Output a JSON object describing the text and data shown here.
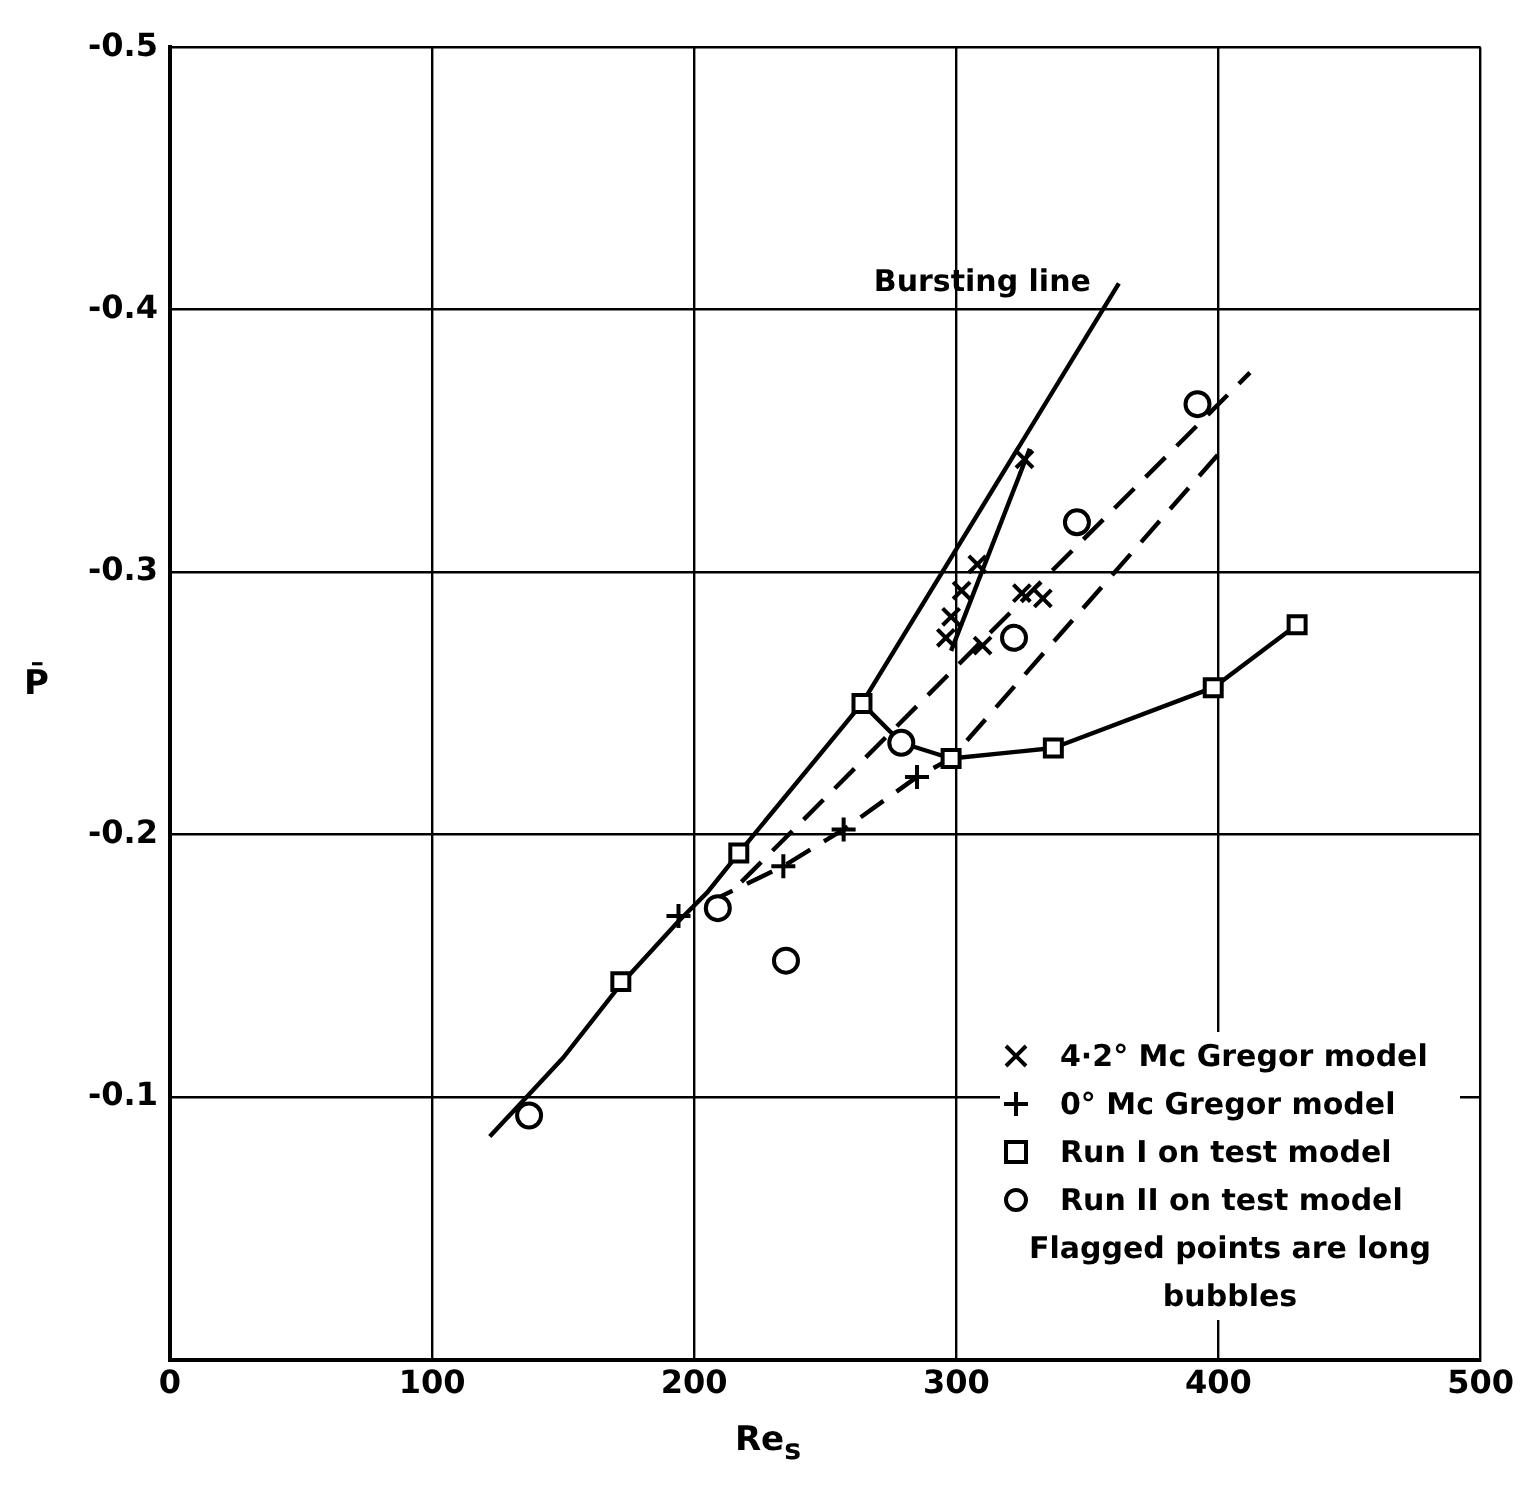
{
  "chart_data": {
    "type": "scatter",
    "xlabel": "Re$_{s}$",
    "ylabel": "P̄",
    "xlim": [
      0,
      500
    ],
    "xticks": [
      0,
      100,
      200,
      300,
      400,
      500
    ],
    "ylim": [
      0,
      -0.5
    ],
    "yticks": [
      {
        "value": 0,
        "label": null
      },
      -0.1,
      -0.2,
      -0.3,
      -0.4,
      -0.5
    ],
    "grid": true,
    "legend": "bottom right",
    "series": [
      {
        "name": "4·2° Mc Gregor model",
        "type": "scatter",
        "marker": "x",
        "color": "#000000",
        "x": [
          296,
          298,
          302,
          308,
          310,
          325,
          333,
          326
        ],
        "values": [
          -0.275,
          -0.283,
          -0.293,
          -0.303,
          -0.272,
          -0.292,
          -0.29,
          -0.343
        ]
      },
      {
        "name": "0° Mc Gregor model",
        "type": "scatter",
        "marker": "cross",
        "color": "#000000",
        "x": [
          194,
          234,
          257,
          285
        ],
        "values": [
          -0.169,
          -0.188,
          -0.202,
          -0.222
        ]
      },
      {
        "name": "Run I on test model",
        "type": "scatter",
        "marker": "square",
        "color": "#000000",
        "x": [
          172,
          217,
          264,
          298,
          337,
          398,
          430
        ],
        "values": [
          -0.144,
          -0.193,
          -0.25,
          -0.229,
          -0.233,
          -0.256,
          -0.28
        ]
      },
      {
        "name": "Run II on test model",
        "type": "scatter",
        "marker": "circle",
        "color": "#000000",
        "x": [
          137,
          209,
          235,
          279,
          322,
          346,
          392
        ],
        "values": [
          -0.093,
          -0.172,
          -0.152,
          -0.235,
          -0.275,
          -0.319,
          -0.364
        ]
      },
      {
        "type": "line",
        "line_style": "solid",
        "color": "#000000",
        "x": [
          122,
          150,
          172,
          194,
          205,
          217,
          264,
          362
        ],
        "values": [
          -0.085,
          -0.115,
          -0.143,
          -0.167,
          -0.178,
          -0.193,
          -0.25,
          -0.41
        ]
      },
      {
        "type": "line",
        "line_style": "solid",
        "color": "#000000",
        "x": [
          264,
          279,
          298,
          337,
          398,
          430
        ],
        "values": [
          -0.25,
          -0.235,
          -0.229,
          -0.233,
          -0.256,
          -0.28
        ]
      },
      {
        "type": "line",
        "line_style": "solid",
        "color": "#000000",
        "x": [
          298,
          328
        ],
        "values": [
          -0.27,
          -0.347
        ]
      },
      {
        "type": "line",
        "line_style": "dashed",
        "color": "#000000",
        "x": [
          218,
          412
        ],
        "values": [
          -0.182,
          -0.376
        ]
      },
      {
        "type": "line",
        "line_style": "dashed",
        "color": "#000000",
        "x": [
          205,
          234,
          257,
          285,
          298,
          400
        ],
        "values": [
          -0.174,
          -0.188,
          -0.202,
          -0.222,
          -0.229,
          -0.345
        ]
      }
    ],
    "annotations": [
      {
        "text": "Bursting line",
        "x": 362,
        "y": -0.41
      },
      "Flagged points are long bubbles"
    ]
  }
}
